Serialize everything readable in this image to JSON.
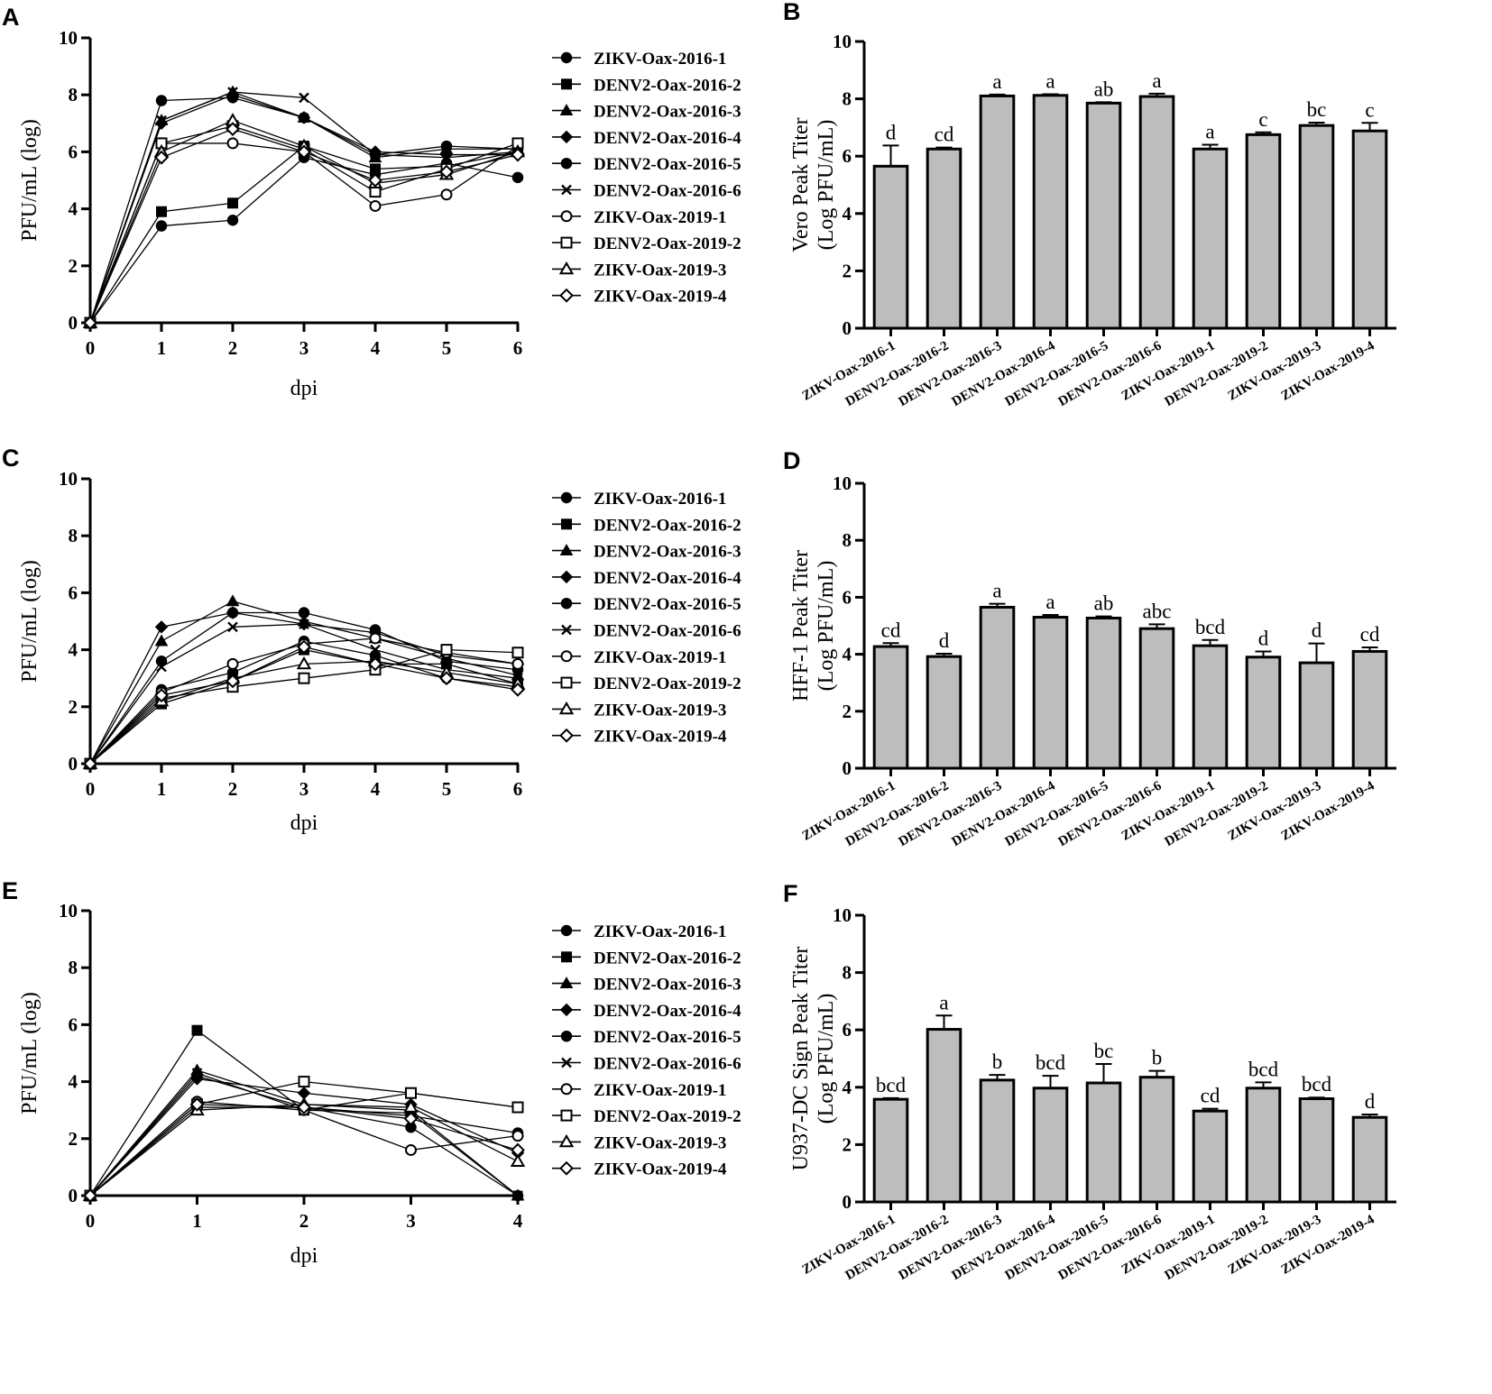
{
  "chart_data": [
    {
      "panel": "A",
      "type": "line",
      "xlabel": "dpi",
      "ylabel": "PFU/mL (log)",
      "xlim": [
        0,
        6
      ],
      "ylim": [
        0,
        10
      ],
      "xticks": [
        "0",
        "1",
        "2",
        "3",
        "4",
        "5",
        "6"
      ],
      "yticks": [
        "0",
        "2",
        "4",
        "6",
        "8",
        "10"
      ],
      "x": [
        0,
        1,
        2,
        3,
        4,
        5,
        6
      ],
      "series": [
        {
          "name": "ZIKV-Oax-2016-1",
          "marker": "circle-filled",
          "values": [
            0,
            3.4,
            3.6,
            5.8,
            5.2,
            5.6,
            5.1
          ]
        },
        {
          "name": "DENV2-Oax-2016-2",
          "marker": "square-filled",
          "values": [
            0,
            3.9,
            4.2,
            6.2,
            5.4,
            5.5,
            6.0
          ]
        },
        {
          "name": "DENV2-Oax-2016-3",
          "marker": "triangle-filled",
          "values": [
            0,
            7.1,
            8.1,
            7.2,
            5.8,
            6.1,
            6.1
          ]
        },
        {
          "name": "DENV2-Oax-2016-4",
          "marker": "diamond-filled",
          "values": [
            0,
            7.0,
            8.0,
            7.2,
            6.0,
            5.9,
            5.9
          ]
        },
        {
          "name": "DENV2-Oax-2016-5",
          "marker": "circle-filled",
          "values": [
            0,
            7.8,
            7.9,
            7.2,
            5.9,
            6.2,
            6.1
          ]
        },
        {
          "name": "DENV2-Oax-2016-6",
          "marker": "x",
          "values": [
            0,
            7.1,
            8.1,
            7.9,
            5.9,
            5.8,
            6.0
          ]
        },
        {
          "name": "ZIKV-Oax-2019-1",
          "marker": "circle-open",
          "values": [
            0,
            6.3,
            6.3,
            6.0,
            4.1,
            4.5,
            6.2
          ]
        },
        {
          "name": "DENV2-Oax-2019-2",
          "marker": "square-open",
          "values": [
            0,
            6.3,
            6.9,
            6.1,
            4.6,
            5.4,
            6.3
          ]
        },
        {
          "name": "ZIKV-Oax-2019-3",
          "marker": "triangle-open",
          "values": [
            0,
            6.0,
            7.1,
            6.2,
            4.9,
            5.2,
            6.0
          ]
        },
        {
          "name": "ZIKV-Oax-2019-4",
          "marker": "diamond-open",
          "values": [
            0,
            5.8,
            6.8,
            6.0,
            5.0,
            5.3,
            5.9
          ]
        }
      ]
    },
    {
      "panel": "B",
      "type": "bar",
      "ylabel": [
        "Vero Peak Titer",
        "(Log PFU/mL)"
      ],
      "ylim": [
        0,
        10
      ],
      "yticks": [
        "0",
        "2",
        "4",
        "6",
        "8",
        "10"
      ],
      "categories": [
        "ZIKV-Oax-2016-1",
        "DENV2-Oax-2016-2",
        "DENV2-Oax-2016-3",
        "DENV2-Oax-2016-4",
        "DENV2-Oax-2016-5",
        "DENV2-Oax-2016-6",
        "ZIKV-Oax-2019-1",
        "DENV2-Oax-2019-2",
        "ZIKV-Oax-2019-3",
        "ZIKV-Oax-2019-4"
      ],
      "values": [
        5.65,
        6.25,
        8.1,
        8.12,
        7.85,
        8.08,
        6.25,
        6.75,
        7.07,
        6.88
      ],
      "errors": [
        0.72,
        0.05,
        0.05,
        0.04,
        0.03,
        0.1,
        0.15,
        0.08,
        0.1,
        0.28
      ],
      "significance": [
        "d",
        "cd",
        "a",
        "a",
        "ab",
        "a",
        "a",
        "c",
        "bc",
        "c"
      ]
    },
    {
      "panel": "C",
      "type": "line",
      "xlabel": "dpi",
      "ylabel": "PFU/mL (log)",
      "xlim": [
        0,
        6
      ],
      "ylim": [
        0,
        10
      ],
      "xticks": [
        "0",
        "1",
        "2",
        "3",
        "4",
        "5",
        "6"
      ],
      "yticks": [
        "0",
        "2",
        "4",
        "6",
        "8",
        "10"
      ],
      "x": [
        0,
        1,
        2,
        3,
        4,
        5,
        6
      ],
      "series": [
        {
          "name": "ZIKV-Oax-2016-1",
          "marker": "circle-filled",
          "values": [
            0,
            2.6,
            3.2,
            4.3,
            3.8,
            3.0,
            2.7
          ]
        },
        {
          "name": "DENV2-Oax-2016-2",
          "marker": "square-filled",
          "values": [
            0,
            2.1,
            2.9,
            4.0,
            3.5,
            3.5,
            2.8
          ]
        },
        {
          "name": "DENV2-Oax-2016-3",
          "marker": "triangle-filled",
          "values": [
            0,
            4.3,
            5.7,
            5.0,
            4.4,
            3.7,
            3.1
          ]
        },
        {
          "name": "DENV2-Oax-2016-4",
          "marker": "diamond-filled",
          "values": [
            0,
            4.8,
            5.3,
            4.9,
            4.6,
            3.8,
            3.5
          ]
        },
        {
          "name": "DENV2-Oax-2016-5",
          "marker": "circle-filled",
          "values": [
            0,
            3.6,
            5.3,
            5.3,
            4.7,
            3.6,
            3.3
          ]
        },
        {
          "name": "DENV2-Oax-2016-6",
          "marker": "x",
          "values": [
            0,
            3.4,
            4.8,
            4.9,
            4.0,
            3.3,
            3.0
          ]
        },
        {
          "name": "ZIKV-Oax-2019-1",
          "marker": "circle-open",
          "values": [
            0,
            2.5,
            3.5,
            4.2,
            4.4,
            3.9,
            3.5
          ]
        },
        {
          "name": "DENV2-Oax-2019-2",
          "marker": "square-open",
          "values": [
            0,
            2.3,
            2.7,
            3.0,
            3.3,
            4.0,
            3.9
          ]
        },
        {
          "name": "ZIKV-Oax-2019-3",
          "marker": "triangle-open",
          "values": [
            0,
            2.2,
            3.0,
            3.5,
            3.6,
            3.2,
            2.8
          ]
        },
        {
          "name": "ZIKV-Oax-2019-4",
          "marker": "diamond-open",
          "values": [
            0,
            2.4,
            2.9,
            4.1,
            3.5,
            3.0,
            2.6
          ]
        }
      ]
    },
    {
      "panel": "D",
      "type": "bar",
      "ylabel": [
        "HFF-1 Peak Titer",
        "(Log PFU/mL)"
      ],
      "ylim": [
        0,
        10
      ],
      "yticks": [
        "0",
        "2",
        "4",
        "6",
        "8",
        "10"
      ],
      "categories": [
        "ZIKV-Oax-2016-1",
        "DENV2-Oax-2016-2",
        "DENV2-Oax-2016-3",
        "DENV2-Oax-2016-4",
        "DENV2-Oax-2016-5",
        "DENV2-Oax-2016-6",
        "ZIKV-Oax-2019-1",
        "DENV2-Oax-2019-2",
        "ZIKV-Oax-2019-3",
        "ZIKV-Oax-2019-4"
      ],
      "values": [
        4.27,
        3.92,
        5.65,
        5.3,
        5.27,
        4.9,
        4.3,
        3.9,
        3.7,
        4.1
      ],
      "errors": [
        0.12,
        0.1,
        0.12,
        0.08,
        0.06,
        0.15,
        0.2,
        0.2,
        0.68,
        0.14
      ],
      "significance": [
        "cd",
        "d",
        "a",
        "a",
        "ab",
        "abc",
        "bcd",
        "d",
        "d",
        "cd"
      ]
    },
    {
      "panel": "E",
      "type": "line",
      "xlabel": "dpi",
      "ylabel": "PFU/mL (log)",
      "xlim": [
        0,
        4
      ],
      "ylim": [
        0,
        10
      ],
      "xticks": [
        "0",
        "1",
        "2",
        "3",
        "4"
      ],
      "yticks": [
        "0",
        "2",
        "4",
        "6",
        "8",
        "10"
      ],
      "x": [
        0,
        1,
        2,
        3,
        4
      ],
      "series": [
        {
          "name": "ZIKV-Oax-2016-1",
          "marker": "circle-filled",
          "values": [
            0,
            3.1,
            3.1,
            2.8,
            2.2
          ]
        },
        {
          "name": "DENV2-Oax-2016-2",
          "marker": "square-filled",
          "values": [
            0,
            5.8,
            3.0,
            3.6,
            3.1
          ]
        },
        {
          "name": "DENV2-Oax-2016-3",
          "marker": "triangle-filled",
          "values": [
            0,
            4.4,
            3.2,
            3.0,
            0.0
          ]
        },
        {
          "name": "DENV2-Oax-2016-4",
          "marker": "diamond-filled",
          "values": [
            0,
            4.1,
            3.6,
            3.2,
            1.5
          ]
        },
        {
          "name": "DENV2-Oax-2016-5",
          "marker": "circle-filled",
          "values": [
            0,
            4.2,
            3.1,
            2.4,
            0.0
          ]
        },
        {
          "name": "DENV2-Oax-2016-6",
          "marker": "x",
          "values": [
            0,
            4.3,
            3.0,
            2.9,
            0.0
          ]
        },
        {
          "name": "ZIKV-Oax-2019-1",
          "marker": "circle-open",
          "values": [
            0,
            3.3,
            3.0,
            1.6,
            2.1
          ]
        },
        {
          "name": "DENV2-Oax-2019-2",
          "marker": "square-open",
          "values": [
            0,
            3.2,
            4.0,
            3.6,
            3.1
          ]
        },
        {
          "name": "ZIKV-Oax-2019-3",
          "marker": "triangle-open",
          "values": [
            0,
            3.0,
            3.2,
            3.1,
            1.2
          ]
        },
        {
          "name": "ZIKV-Oax-2019-4",
          "marker": "diamond-open",
          "values": [
            0,
            3.2,
            3.1,
            2.7,
            1.6
          ]
        }
      ]
    },
    {
      "panel": "F",
      "type": "bar",
      "ylabel": [
        "U937-DC Sign Peak Titer",
        "(Log PFU/mL)"
      ],
      "ylim": [
        0,
        10
      ],
      "yticks": [
        "0",
        "2",
        "4",
        "6",
        "8",
        "10"
      ],
      "categories": [
        "ZIKV-Oax-2016-1",
        "DENV2-Oax-2016-2",
        "DENV2-Oax-2016-3",
        "DENV2-Oax-2016-4",
        "DENV2-Oax-2016-5",
        "DENV2-Oax-2016-6",
        "ZIKV-Oax-2019-1",
        "DENV2-Oax-2019-2",
        "ZIKV-Oax-2019-3",
        "ZIKV-Oax-2019-4"
      ],
      "values": [
        3.58,
        6.02,
        4.25,
        3.97,
        4.15,
        4.35,
        3.17,
        3.97,
        3.6,
        2.95
      ],
      "errors": [
        0.04,
        0.48,
        0.18,
        0.43,
        0.66,
        0.22,
        0.08,
        0.2,
        0.04,
        0.1
      ],
      "significance": [
        "bcd",
        "a",
        "b",
        "bcd",
        "bc",
        "b",
        "cd",
        "bcd",
        "bcd",
        "d"
      ]
    }
  ]
}
